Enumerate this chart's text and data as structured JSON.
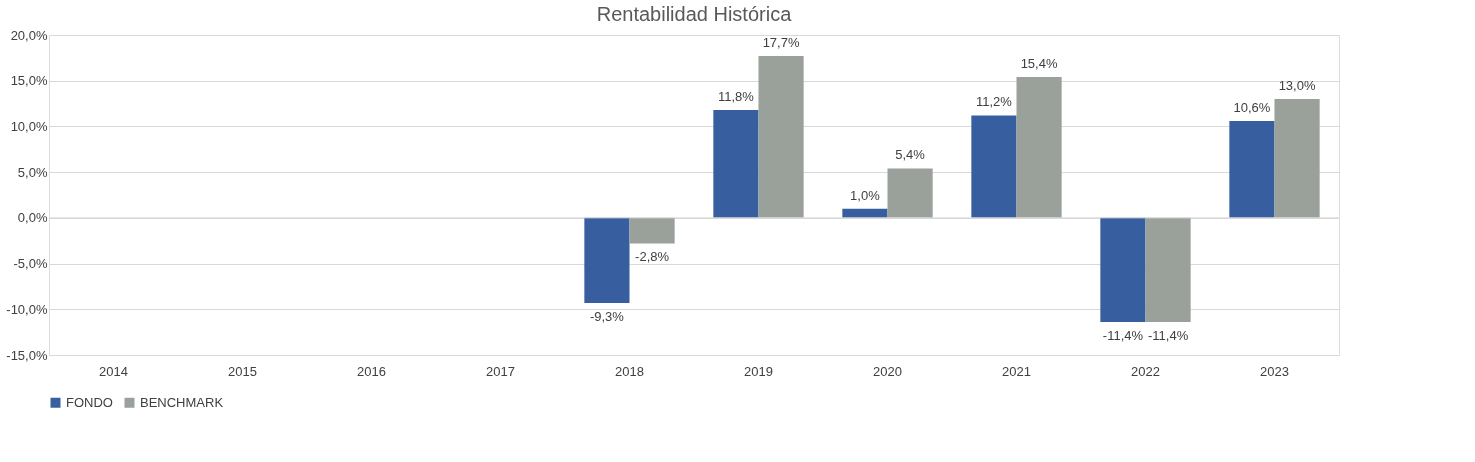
{
  "chart_data": {
    "type": "bar",
    "title": "Rentabilidad Histórica",
    "categories": [
      "2014",
      "2015",
      "2016",
      "2017",
      "2018",
      "2019",
      "2020",
      "2021",
      "2022",
      "2023"
    ],
    "series": [
      {
        "name": "FONDO",
        "color": "#375f9f",
        "values": [
          null,
          null,
          null,
          null,
          -9.3,
          11.8,
          1.0,
          11.2,
          -11.4,
          10.6
        ],
        "value_labels": [
          null,
          null,
          null,
          null,
          "-9,3%",
          "11,8%",
          "1,0%",
          "11,2%",
          "-11,4%",
          "10,6%"
        ]
      },
      {
        "name": "BENCHMARK",
        "color": "#9aa09a",
        "values": [
          null,
          null,
          null,
          null,
          -2.8,
          17.7,
          5.4,
          15.4,
          -11.4,
          13.0
        ],
        "value_labels": [
          null,
          null,
          null,
          null,
          "-2,8%",
          "17,7%",
          "5,4%",
          "15,4%",
          "-11,4%",
          "13,0%"
        ]
      }
    ],
    "ylim": [
      -15,
      20
    ],
    "yticks": [
      {
        "value": -15,
        "label": "-15,0%"
      },
      {
        "value": -10,
        "label": "-10,0%"
      },
      {
        "value": -5,
        "label": "-5,0%"
      },
      {
        "value": 0,
        "label": "0,0%"
      },
      {
        "value": 5,
        "label": "5,0%"
      },
      {
        "value": 10,
        "label": "10,0%"
      },
      {
        "value": 15,
        "label": "15,0%"
      },
      {
        "value": 20,
        "label": "20,0%"
      }
    ],
    "grid": "y",
    "legend": "bottom"
  }
}
